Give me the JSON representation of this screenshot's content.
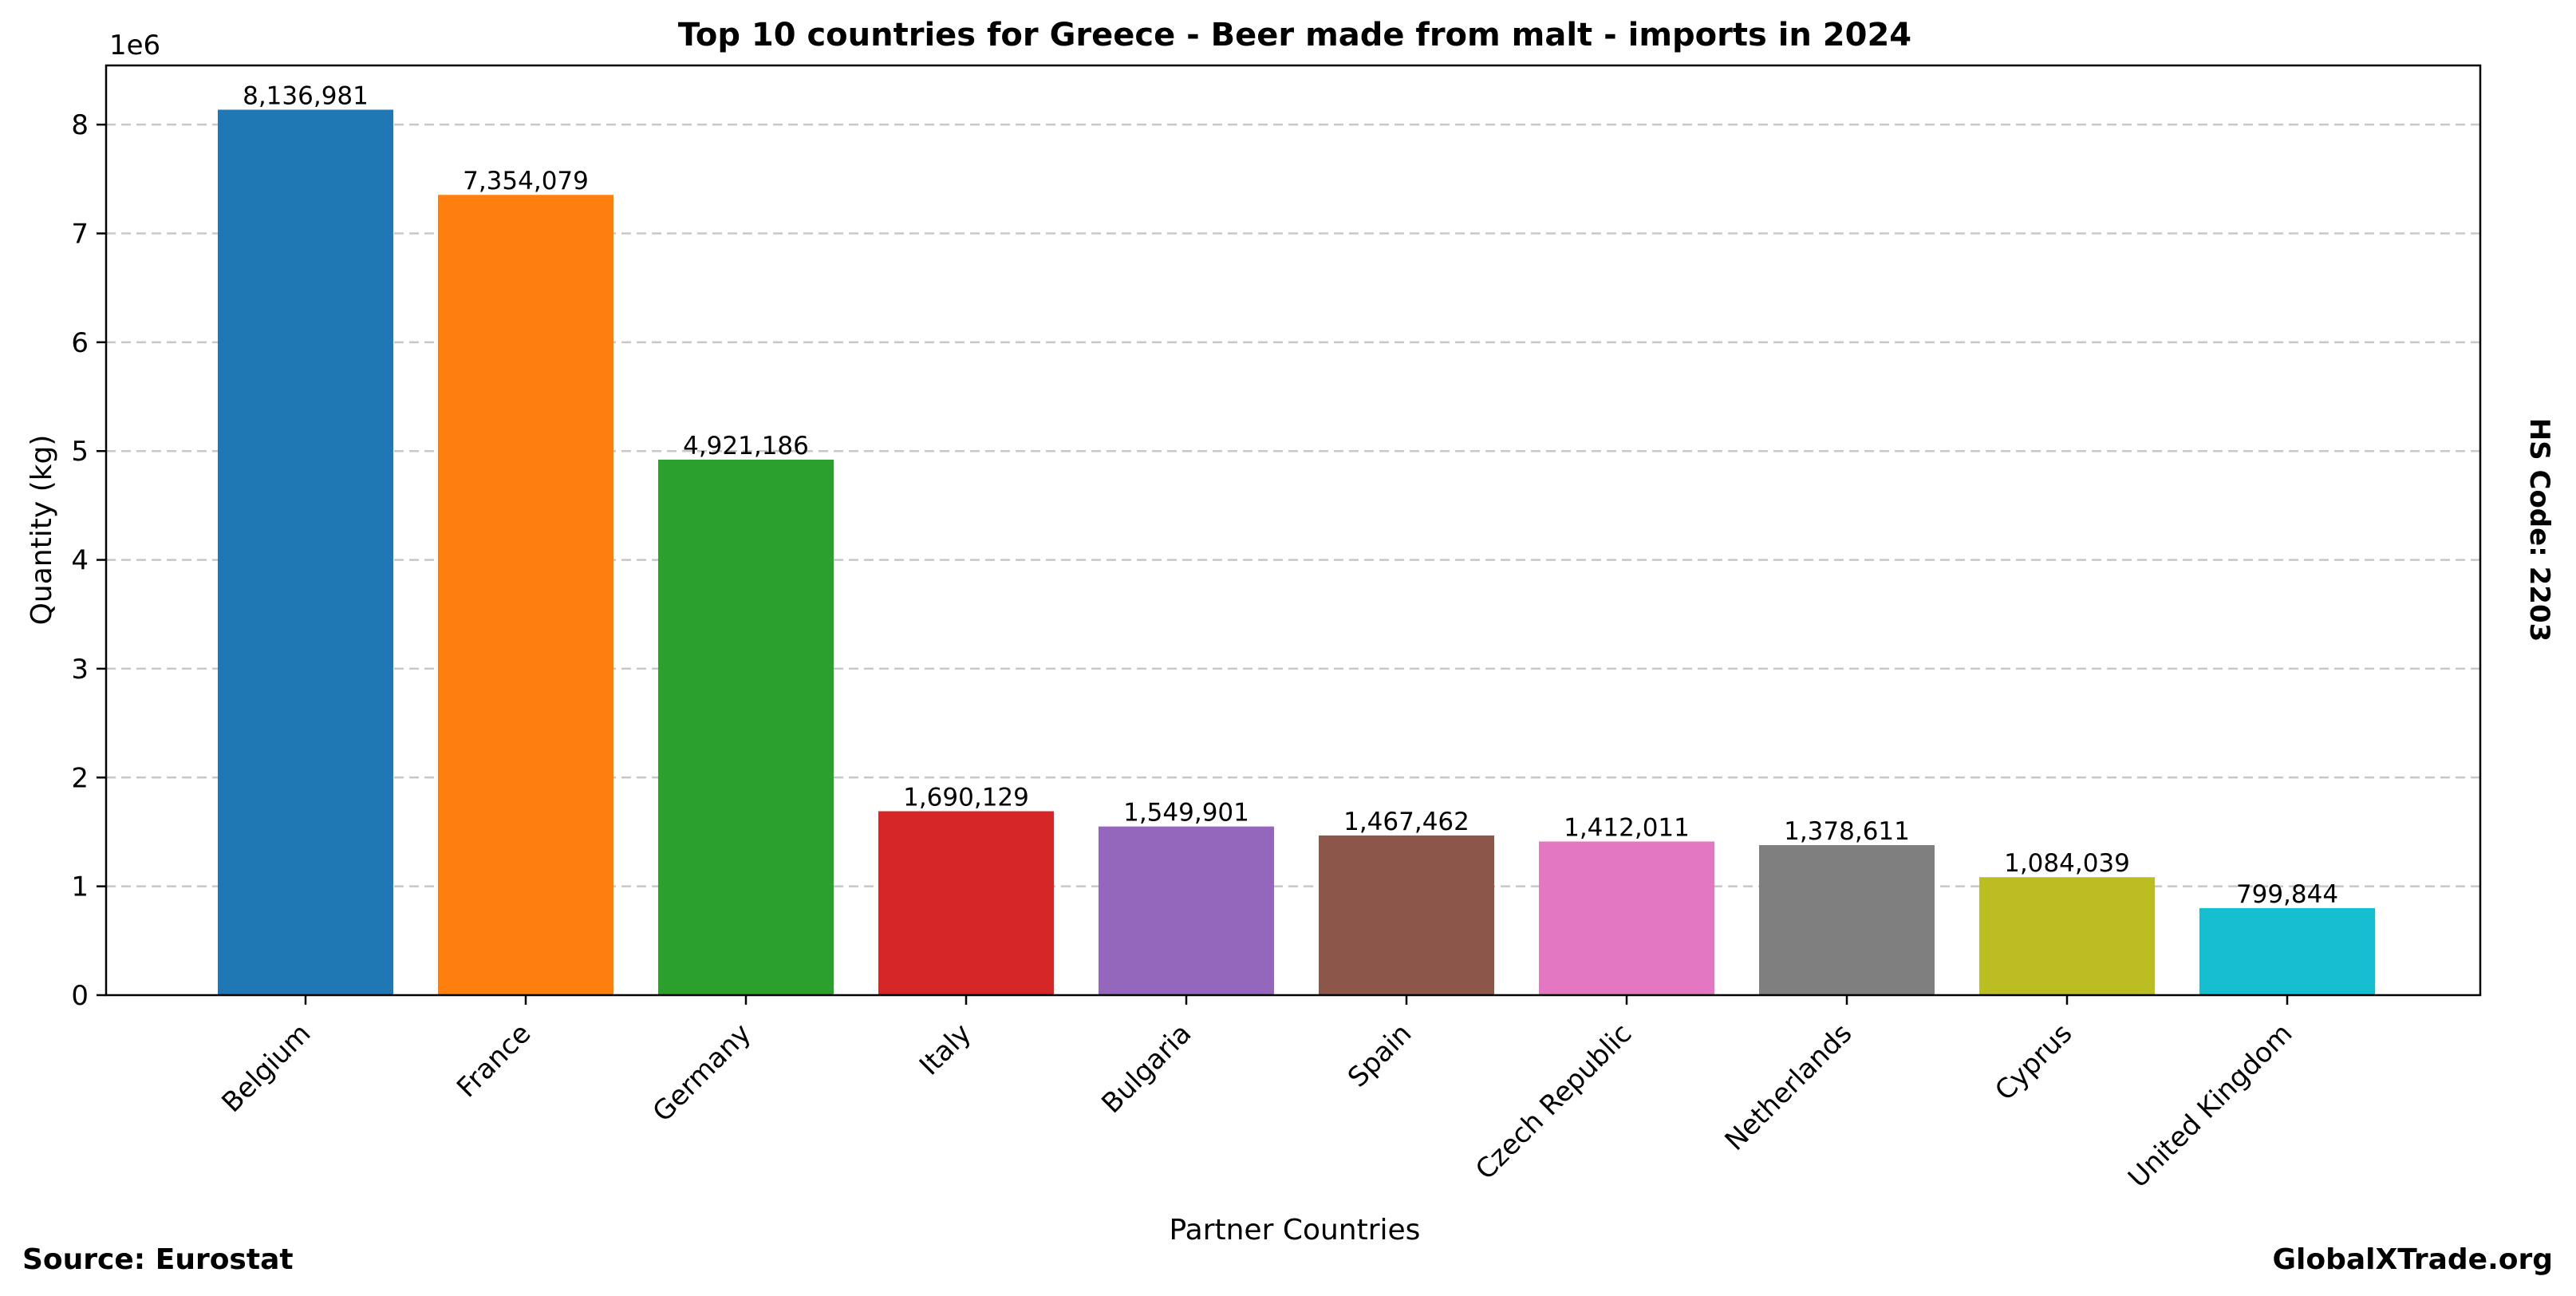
{
  "chart_data": {
    "type": "bar",
    "title": "Top 10 countries for Greece - Beer made from malt - imports in 2024",
    "xlabel": "Partner Countries",
    "ylabel": "Quantity (kg)",
    "y_scale_label": "1e6",
    "ylim": [
      0,
      8543830
    ],
    "y_ticks": [
      0,
      1,
      2,
      3,
      4,
      5,
      6,
      7,
      8
    ],
    "y_tick_multiplier": 1000000,
    "grid": "horizontal dashed",
    "categories": [
      "Belgium",
      "France",
      "Germany",
      "Italy",
      "Bulgaria",
      "Spain",
      "Czech Republic",
      "Netherlands",
      "Cyprus",
      "United Kingdom"
    ],
    "values": [
      8136981,
      7354079,
      4921186,
      1690129,
      1549901,
      1467462,
      1412011,
      1378611,
      1084039,
      799844
    ],
    "value_labels": [
      "8,136,981",
      "7,354,079",
      "4,921,186",
      "1,690,129",
      "1,549,901",
      "1,467,462",
      "1,412,011",
      "1,378,611",
      "1,084,039",
      "799,844"
    ],
    "colors": [
      "#1f77b4",
      "#ff7f0e",
      "#2ca02c",
      "#d62728",
      "#9467bd",
      "#8c564b",
      "#e377c2",
      "#7f7f7f",
      "#bcbd22",
      "#17becf"
    ]
  },
  "side_label": "HS Code: 2203",
  "footer": {
    "source": "Source: Eurostat",
    "site": "GlobalXTrade.org"
  }
}
